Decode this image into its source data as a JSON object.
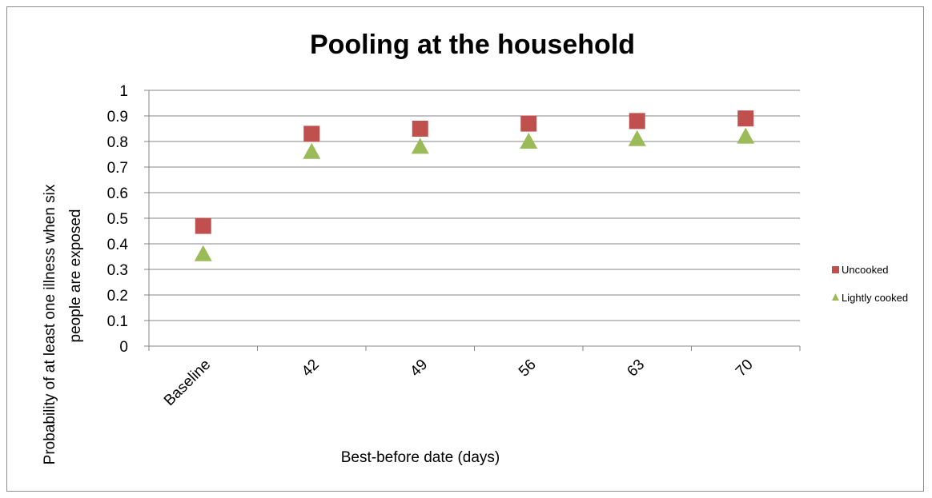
{
  "chart_data": {
    "type": "scatter",
    "title": "Pooling at the household",
    "xlabel": "Best-before date (days)",
    "ylabel_lines": [
      "Probability of at least one illness when six",
      "people are exposed"
    ],
    "categories": [
      "Baseline",
      "42",
      "49",
      "56",
      "63",
      "70"
    ],
    "ylim": [
      0,
      1
    ],
    "yticks": [
      "0",
      "0.1",
      "0.2",
      "0.3",
      "0.4",
      "0.5",
      "0.6",
      "0.7",
      "0.8",
      "0.9",
      "1"
    ],
    "grid": true,
    "legend_position": "right",
    "series": [
      {
        "name": "Uncooked",
        "marker": "square",
        "color": "#c0504d",
        "values": [
          0.47,
          0.83,
          0.85,
          0.87,
          0.88,
          0.89
        ]
      },
      {
        "name": "Lightly cooked",
        "marker": "triangle",
        "color": "#9bbb59",
        "values": [
          0.36,
          0.76,
          0.78,
          0.8,
          0.81,
          0.82
        ]
      }
    ]
  }
}
